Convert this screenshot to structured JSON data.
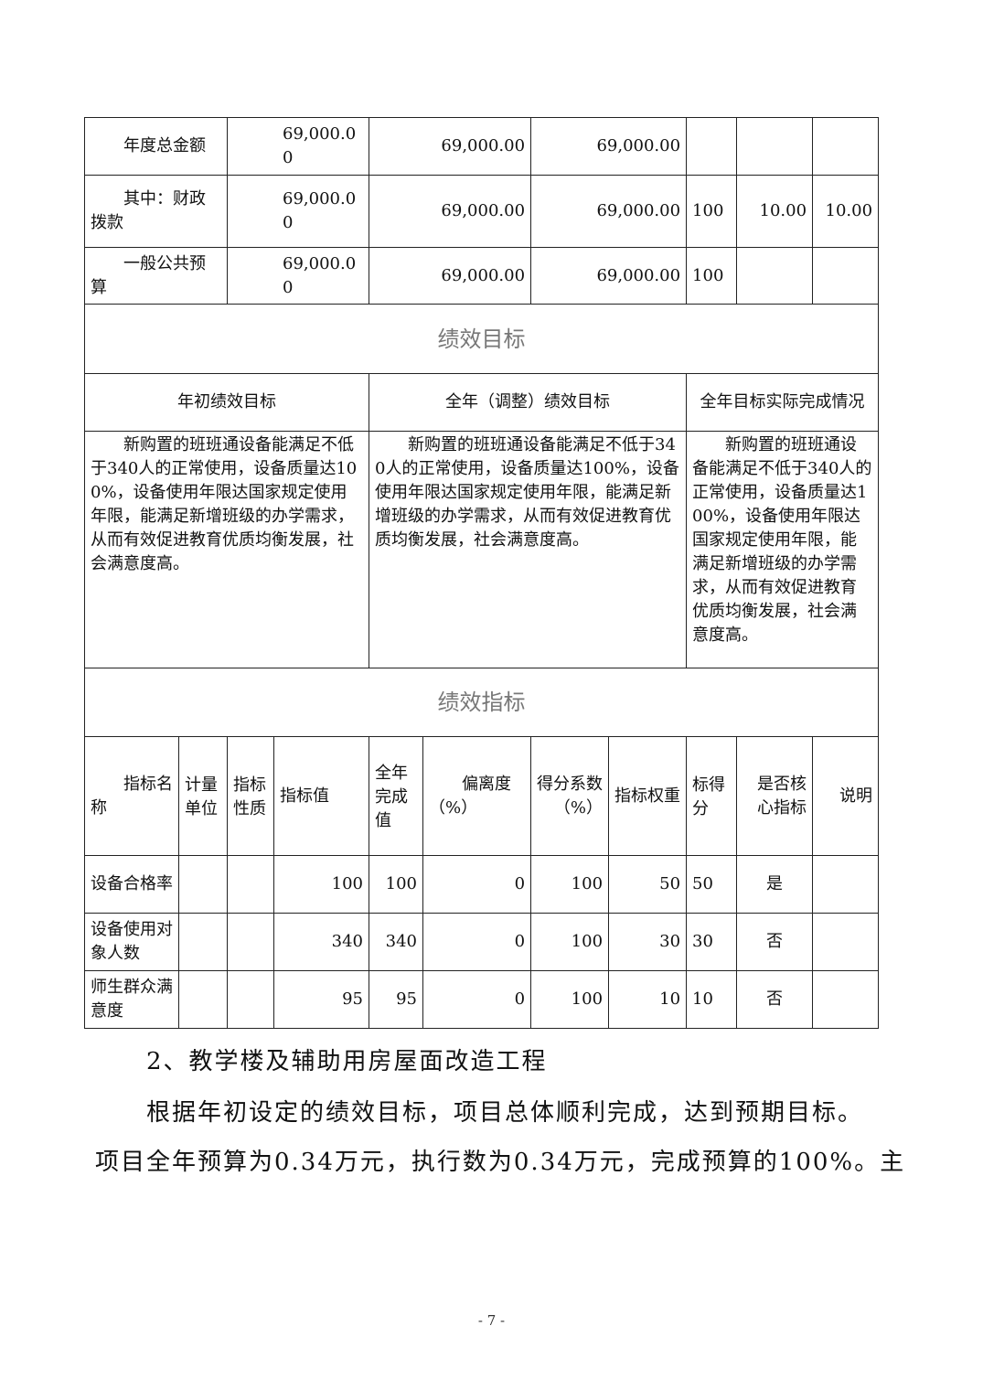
{
  "budget_rows": [
    {
      "label": "年度总金额",
      "annual_budget": "69,000.00",
      "adjusted_budget": "69,000.00",
      "executed": "69,000.00",
      "rate": "",
      "score_weight": "",
      "score": ""
    },
    {
      "label": "其中：财政拨款",
      "annual_budget": "69,000.00",
      "adjusted_budget": "69,000.00",
      "executed": "69,000.00",
      "rate": "100",
      "score_weight": "10.00",
      "score": "10.00"
    },
    {
      "label": "一般公共预算",
      "annual_budget": "69,000.00",
      "adjusted_budget": "69,000.00",
      "executed": "69,000.00",
      "rate": "100",
      "score_weight": "",
      "score": ""
    }
  ],
  "goals": {
    "section_title": "绩效目标",
    "headers": [
      "年初绩效目标",
      "全年（调整）绩效目标",
      "全年目标实际完成情况"
    ],
    "texts": [
      "新购置的班班通设备能满足不低于340人的正常使用，设备质量达100%，设备使用年限达国家规定使用年限，能满足新增班级的办学需求，从而有效促进教育优质均衡发展，社会满意度高。",
      "新购置的班班通设备能满足不低于340人的正常使用，设备质量达100%，设备使用年限达国家规定使用年限，能满足新增班级的办学需求，从而有效促进教育优质均衡发展，社会满意度高。",
      "新购置的班班通设备能满足不低于340人的正常使用，设备质量达100%，设备使用年限达国家规定使用年限，能满足新增班级的办学需求，从而有效促进教育优质均衡发展，社会满意度高。"
    ]
  },
  "indicators": {
    "section_title": "绩效指标",
    "headers": [
      "指标名称",
      "计量单位",
      "指标性质",
      "指标值",
      "全年完成值",
      "偏离度（%）",
      "得分系数（%）",
      "指标权重",
      "标得分",
      "是否核心指标",
      "说明"
    ],
    "rows": [
      {
        "name": "设备合格率",
        "unit": "",
        "nature": "",
        "value": "100",
        "actual": "100",
        "deviation": "0",
        "coef": "100",
        "weight": "50",
        "score": "50",
        "core": "是",
        "note": ""
      },
      {
        "name": "设备使用对象人数",
        "unit": "",
        "nature": "",
        "value": "340",
        "actual": "340",
        "deviation": "0",
        "coef": "100",
        "weight": "30",
        "score": "30",
        "core": "否",
        "note": ""
      },
      {
        "name": "师生群众满意度",
        "unit": "",
        "nature": "",
        "value": "95",
        "actual": "95",
        "deviation": "0",
        "coef": "100",
        "weight": "10",
        "score": "10",
        "core": "否",
        "note": ""
      }
    ]
  },
  "body": {
    "heading": "2、教学楼及辅助用房屋面改造工程",
    "line1": "根据年初设定的绩效目标，项目总体顺利完成，达到预期目标。",
    "line2": "项目全年预算为0.34万元，执行数为0.34万元，完成预算的100%。主"
  },
  "page_number": "- 7 -"
}
